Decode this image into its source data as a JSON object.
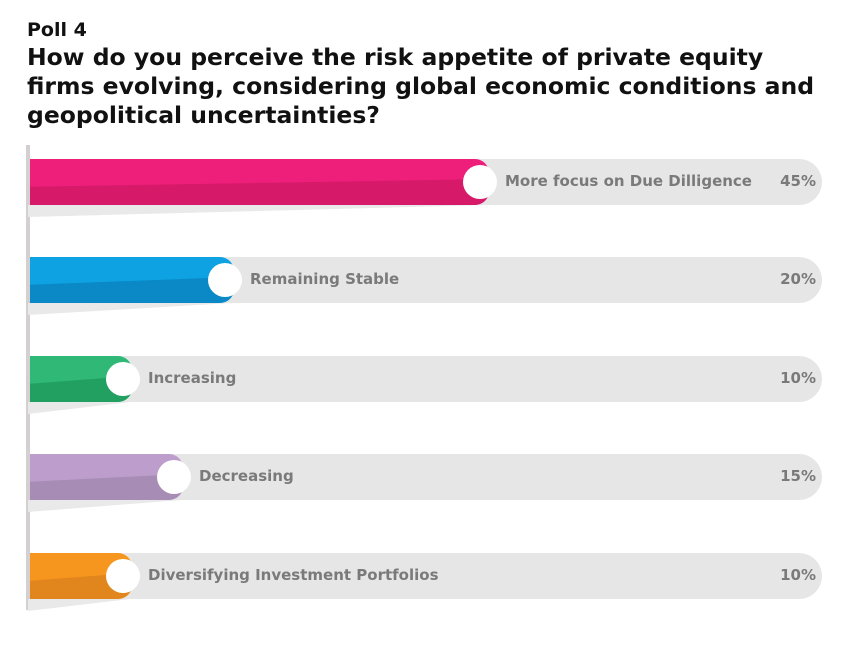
{
  "poll_label": "Poll 4",
  "title": "How do you perceive the risk appetite of private equity firms evolving, considering global economic conditions and geopolitical uncertainties?",
  "chart_data": {
    "type": "bar",
    "orientation": "horizontal",
    "title": "How do you perceive the risk appetite of private equity firms evolving, considering global economic conditions and geopolitical uncertainties?",
    "categories": [
      "More focus on Due Dilligence",
      "Remaining Stable",
      "Increasing",
      "Decreasing",
      "Diversifying Investment Portfolios"
    ],
    "values": [
      45,
      20,
      10,
      15,
      10
    ],
    "value_labels": [
      "45%",
      "20%",
      "10%",
      "15%",
      "10%"
    ],
    "colors": [
      [
        "#ee1f7a",
        "#d61a69"
      ],
      [
        "#0ea2e2",
        "#0a89c6"
      ],
      [
        "#30b877",
        "#22a062"
      ],
      [
        "#bc9dcc",
        "#a78db5"
      ],
      [
        "#f7961f",
        "#e0861c"
      ]
    ],
    "unit": "%"
  }
}
